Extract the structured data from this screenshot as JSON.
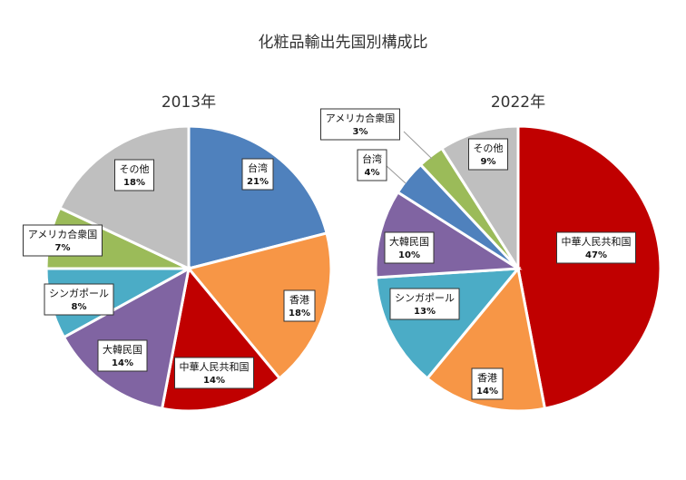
{
  "chart_data": {
    "title": "化粧品輸出先国別構成比",
    "type": "pie",
    "pies": [
      {
        "title": "2013年",
        "slices": [
          {
            "name": "台湾",
            "value": 21,
            "label": "21%",
            "color": "#4F81BD"
          },
          {
            "name": "香港",
            "value": 18,
            "label": "18%",
            "color": "#F79646"
          },
          {
            "name": "中華人民共和国",
            "value": 14,
            "label": "14%",
            "color": "#C00000"
          },
          {
            "name": "大韓民国",
            "value": 14,
            "label": "14%",
            "color": "#8064A2"
          },
          {
            "name": "シンガポール",
            "value": 8,
            "label": "8%",
            "color": "#4BACC6"
          },
          {
            "name": "アメリカ合衆国",
            "value": 7,
            "label": "7%",
            "color": "#9BBB59"
          },
          {
            "name": "その他",
            "value": 18,
            "label": "18%",
            "color": "#BFBFBF"
          }
        ]
      },
      {
        "title": "2022年",
        "slices": [
          {
            "name": "中華人民共和国",
            "value": 47,
            "label": "47%",
            "color": "#C00000"
          },
          {
            "name": "香港",
            "value": 14,
            "label": "14%",
            "color": "#F79646"
          },
          {
            "name": "シンガポール",
            "value": 13,
            "label": "13%",
            "color": "#4BACC6"
          },
          {
            "name": "大韓民国",
            "value": 10,
            "label": "10%",
            "color": "#8064A2"
          },
          {
            "name": "台湾",
            "value": 4,
            "label": "4%",
            "color": "#4F81BD"
          },
          {
            "name": "アメリカ合衆国",
            "value": 3,
            "label": "3%",
            "color": "#9BBB59"
          },
          {
            "name": "その他",
            "value": 9,
            "label": "9%",
            "color": "#BFBFBF"
          }
        ]
      }
    ]
  }
}
